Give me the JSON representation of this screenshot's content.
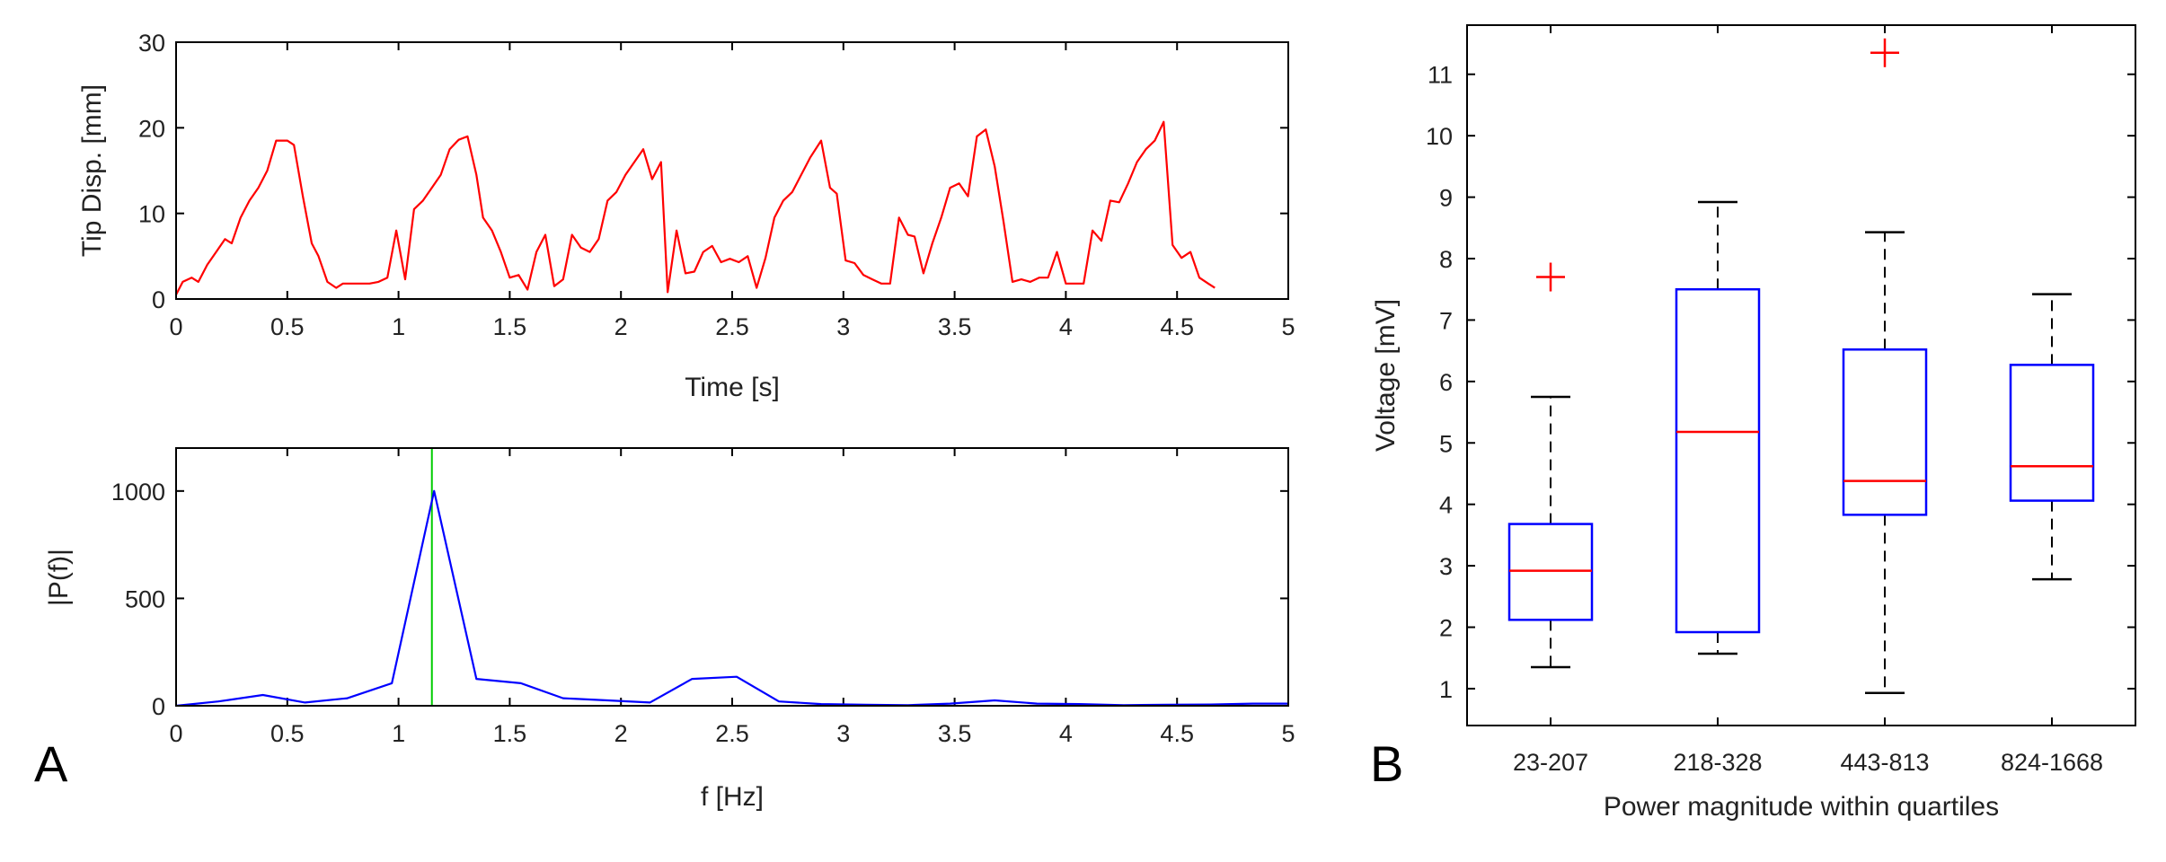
{
  "figure": {
    "panel_a_label": "A",
    "panel_b_label": "B"
  },
  "colors": {
    "axis": "#000000",
    "red": "#ff0000",
    "blue": "#0000ff",
    "green": "#00cc00"
  },
  "chart_data": [
    {
      "id": "tip",
      "type": "line",
      "xlabel": "Time [s]",
      "ylabel": "Tip Disp. [mm]",
      "xlim": [
        0,
        5
      ],
      "ylim": [
        0,
        30
      ],
      "xticks": [
        0,
        0.5,
        1,
        1.5,
        2,
        2.5,
        3,
        3.5,
        4,
        4.5,
        5
      ],
      "xtick_labels": [
        "0",
        "0.5",
        "1",
        "1.5",
        "2",
        "2.5",
        "3",
        "3.5",
        "4",
        "4.5",
        "5"
      ],
      "yticks": [
        0,
        10,
        20,
        30
      ],
      "ytick_labels": [
        "0",
        "10",
        "20",
        "30"
      ],
      "series": [
        {
          "name": "tip displacement",
          "color": "#ff0000",
          "points": [
            [
              0,
              0.5
            ],
            [
              0.03,
              2
            ],
            [
              0.07,
              2.5
            ],
            [
              0.1,
              2
            ],
            [
              0.14,
              4
            ],
            [
              0.18,
              5.5
            ],
            [
              0.22,
              7
            ],
            [
              0.25,
              6.5
            ],
            [
              0.29,
              9.5
            ],
            [
              0.33,
              11.5
            ],
            [
              0.37,
              13
            ],
            [
              0.41,
              15
            ],
            [
              0.45,
              18.5
            ],
            [
              0.5,
              18.5
            ],
            [
              0.53,
              18
            ],
            [
              0.57,
              12
            ],
            [
              0.61,
              6.5
            ],
            [
              0.64,
              5
            ],
            [
              0.68,
              2
            ],
            [
              0.72,
              1.3
            ],
            [
              0.75,
              1.8
            ],
            [
              0.79,
              1.8
            ],
            [
              0.83,
              1.8
            ],
            [
              0.87,
              1.8
            ],
            [
              0.91,
              2
            ],
            [
              0.95,
              2.5
            ],
            [
              0.99,
              8
            ],
            [
              1.03,
              2.3
            ],
            [
              1.07,
              10.5
            ],
            [
              1.11,
              11.5
            ],
            [
              1.15,
              13
            ],
            [
              1.19,
              14.5
            ],
            [
              1.23,
              17.5
            ],
            [
              1.27,
              18.6
            ],
            [
              1.31,
              19
            ],
            [
              1.35,
              14.5
            ],
            [
              1.38,
              9.5
            ],
            [
              1.42,
              8
            ],
            [
              1.46,
              5.5
            ],
            [
              1.5,
              2.5
            ],
            [
              1.54,
              2.8
            ],
            [
              1.58,
              1.1
            ],
            [
              1.62,
              5.5
            ],
            [
              1.66,
              7.5
            ],
            [
              1.7,
              1.5
            ],
            [
              1.74,
              2.3
            ],
            [
              1.78,
              7.5
            ],
            [
              1.82,
              6
            ],
            [
              1.86,
              5.5
            ],
            [
              1.9,
              7
            ],
            [
              1.94,
              11.5
            ],
            [
              1.98,
              12.5
            ],
            [
              2.02,
              14.5
            ],
            [
              2.06,
              16
            ],
            [
              2.1,
              17.5
            ],
            [
              2.14,
              14
            ],
            [
              2.18,
              16
            ],
            [
              2.21,
              0.8
            ],
            [
              2.25,
              8
            ],
            [
              2.29,
              3
            ],
            [
              2.33,
              3.2
            ],
            [
              2.37,
              5.5
            ],
            [
              2.41,
              6.2
            ],
            [
              2.45,
              4.3
            ],
            [
              2.49,
              4.7
            ],
            [
              2.53,
              4.3
            ],
            [
              2.57,
              5
            ],
            [
              2.61,
              1.3
            ],
            [
              2.65,
              4.8
            ],
            [
              2.69,
              9.5
            ],
            [
              2.73,
              11.5
            ],
            [
              2.77,
              12.5
            ],
            [
              2.81,
              14.5
            ],
            [
              2.85,
              16.5
            ],
            [
              2.9,
              18.5
            ],
            [
              2.94,
              13
            ],
            [
              2.97,
              12.3
            ],
            [
              3.01,
              4.5
            ],
            [
              3.05,
              4.2
            ],
            [
              3.09,
              2.8
            ],
            [
              3.13,
              2.3
            ],
            [
              3.17,
              1.8
            ],
            [
              3.21,
              1.8
            ],
            [
              3.25,
              9.5
            ],
            [
              3.29,
              7.5
            ],
            [
              3.32,
              7.3
            ],
            [
              3.36,
              3
            ],
            [
              3.4,
              6.5
            ],
            [
              3.44,
              9.5
            ],
            [
              3.48,
              13
            ],
            [
              3.52,
              13.5
            ],
            [
              3.56,
              12
            ],
            [
              3.6,
              19
            ],
            [
              3.64,
              19.8
            ],
            [
              3.68,
              15.5
            ],
            [
              3.72,
              9
            ],
            [
              3.76,
              2
            ],
            [
              3.8,
              2.3
            ],
            [
              3.84,
              2
            ],
            [
              3.88,
              2.5
            ],
            [
              3.92,
              2.5
            ],
            [
              3.96,
              5.5
            ],
            [
              4,
              1.8
            ],
            [
              4.04,
              1.8
            ],
            [
              4.08,
              1.8
            ],
            [
              4.12,
              8
            ],
            [
              4.16,
              6.8
            ],
            [
              4.2,
              11.5
            ],
            [
              4.24,
              11.3
            ],
            [
              4.28,
              13.5
            ],
            [
              4.32,
              16
            ],
            [
              4.36,
              17.5
            ],
            [
              4.4,
              18.5
            ],
            [
              4.44,
              20.7
            ],
            [
              4.48,
              6.3
            ],
            [
              4.52,
              4.8
            ],
            [
              4.56,
              5.5
            ],
            [
              4.6,
              2.5
            ],
            [
              4.64,
              1.8
            ],
            [
              4.67,
              1.3
            ]
          ]
        }
      ]
    },
    {
      "id": "spectrum",
      "type": "line",
      "xlabel": "f [Hz]",
      "ylabel": "|P(f)|",
      "xlim": [
        0,
        5
      ],
      "ylim": [
        0,
        1200
      ],
      "xticks": [
        0,
        0.5,
        1,
        1.5,
        2,
        2.5,
        3,
        3.5,
        4,
        4.5,
        5
      ],
      "xtick_labels": [
        "0",
        "0.5",
        "1",
        "1.5",
        "2",
        "2.5",
        "3",
        "3.5",
        "4",
        "4.5",
        "5"
      ],
      "yticks": [
        0,
        500,
        1000
      ],
      "ytick_labels": [
        "0",
        "500",
        "1000"
      ],
      "vline": {
        "x": 1.15,
        "color": "#00cc00"
      },
      "series": [
        {
          "name": "spectrum",
          "color": "#0000ff",
          "points": [
            [
              0,
              0
            ],
            [
              0.19,
              20
            ],
            [
              0.39,
              50
            ],
            [
              0.58,
              15
            ],
            [
              0.77,
              35
            ],
            [
              0.97,
              105
            ],
            [
              1.16,
              1000
            ],
            [
              1.35,
              125
            ],
            [
              1.55,
              105
            ],
            [
              1.74,
              35
            ],
            [
              1.94,
              25
            ],
            [
              2.13,
              15
            ],
            [
              2.32,
              125
            ],
            [
              2.52,
              135
            ],
            [
              2.71,
              20
            ],
            [
              2.9,
              8
            ],
            [
              3.1,
              5
            ],
            [
              3.29,
              3
            ],
            [
              3.48,
              10
            ],
            [
              3.68,
              25
            ],
            [
              3.87,
              10
            ],
            [
              4.06,
              8
            ],
            [
              4.26,
              3
            ],
            [
              4.45,
              5
            ],
            [
              4.65,
              6
            ],
            [
              4.84,
              10
            ],
            [
              5,
              10
            ]
          ]
        }
      ]
    },
    {
      "id": "boxplot",
      "type": "box",
      "xlabel": "Power magnitude within quartiles",
      "ylabel": "Voltage [mV]",
      "ylim": [
        0.4,
        11.8
      ],
      "yticks": [
        1,
        2,
        3,
        4,
        5,
        6,
        7,
        8,
        9,
        10,
        11
      ],
      "ytick_labels": [
        "1",
        "2",
        "3",
        "4",
        "5",
        "6",
        "7",
        "8",
        "9",
        "10",
        "11"
      ],
      "categories": [
        "23-207",
        "218-328",
        "443-813",
        "824-1668"
      ],
      "boxes": [
        {
          "whisker_low": 1.35,
          "q1": 2.12,
          "median": 2.92,
          "q3": 3.68,
          "whisker_high": 5.75,
          "outliers": [
            7.7
          ]
        },
        {
          "whisker_low": 1.57,
          "q1": 1.92,
          "median": 5.18,
          "q3": 7.5,
          "whisker_high": 8.92,
          "outliers": []
        },
        {
          "whisker_low": 0.93,
          "q1": 3.83,
          "median": 4.38,
          "q3": 6.52,
          "whisker_high": 8.43,
          "outliers": [
            11.35
          ]
        },
        {
          "whisker_low": 2.78,
          "q1": 4.06,
          "median": 4.62,
          "q3": 6.27,
          "whisker_high": 7.42,
          "outliers": []
        }
      ]
    }
  ]
}
